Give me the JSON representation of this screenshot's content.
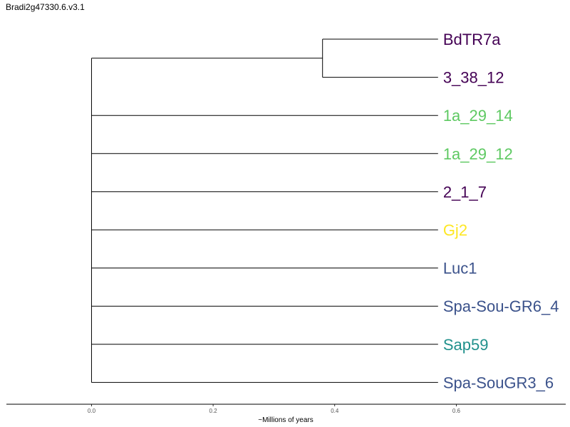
{
  "title": "Bradi2g47330.6.v3.1",
  "chart_data": {
    "type": "tree",
    "xlabel": "~Millions of years",
    "xlim": [
      -0.14,
      0.78
    ],
    "ticks": [
      0.0,
      0.2,
      0.4,
      0.6
    ],
    "tick_labels": [
      "0.0",
      "0.2",
      "0.4",
      "0.6"
    ],
    "root_x": 0.0,
    "tip_x": 0.57,
    "clade": {
      "name": "BdTR7a+3_38_12",
      "node_x": 0.38
    },
    "leaves": [
      {
        "name": "BdTR7a",
        "color": "#440154"
      },
      {
        "name": "3_38_12",
        "color": "#440154"
      },
      {
        "name": "1a_29_14",
        "color": "#5ec962"
      },
      {
        "name": "1a_29_12",
        "color": "#5ec962"
      },
      {
        "name": "2_1_7",
        "color": "#440154"
      },
      {
        "name": "Gj2",
        "color": "#fde725"
      },
      {
        "name": "Luc1",
        "color": "#3b528b"
      },
      {
        "name": "Spa-Sou-GR6_4",
        "color": "#3b528b"
      },
      {
        "name": "Sap59",
        "color": "#21918c"
      },
      {
        "name": "Spa-SouGR3_6",
        "color": "#3b528b"
      }
    ]
  }
}
